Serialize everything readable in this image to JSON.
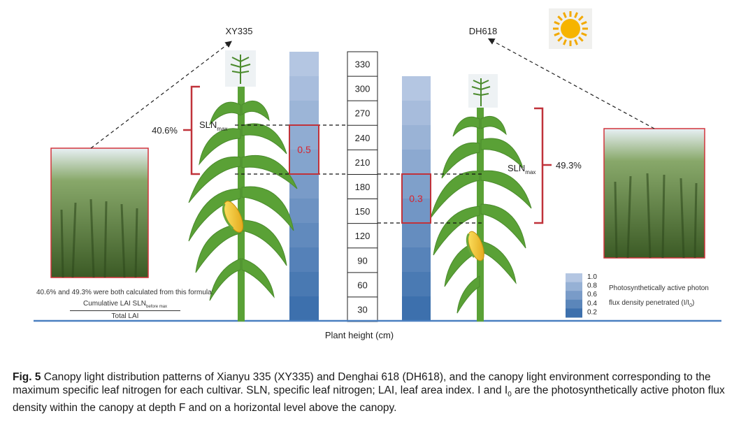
{
  "cultivars": {
    "left": {
      "name": "XY335",
      "percent": "40.6%",
      "sln_label": "SLN",
      "sln_sub": "max",
      "box_value": "0.5"
    },
    "right": {
      "name": "DH618",
      "percent": "49.3%",
      "sln_label": "SLN",
      "sln_sub": "max",
      "box_value": "0.3"
    }
  },
  "height_scale": {
    "ticks": [
      "330",
      "300",
      "270",
      "240",
      "210",
      "180",
      "150",
      "120",
      "90",
      "60",
      "30"
    ],
    "xlabel": "Plant height (cm)"
  },
  "formula": {
    "note": "40.6% and 49.3% were both calculated from this formula:",
    "numerator_main": "Cumulative LAI  SLN",
    "numerator_sub": "before max",
    "denominator": "Total LAI"
  },
  "legend": {
    "values": [
      "1.0",
      "0.8",
      "0.6",
      "0.4",
      "0.2"
    ],
    "line1": "Photosynthetically active photon",
    "line2_main": "flux density penetrated (I/I",
    "line2_sub": "0",
    "line2_end": ")"
  },
  "caption": {
    "label": "Fig. 5",
    "text1": "  Canopy light distribution patterns of Xianyu 335 (XY335) and Denghai 618 (DH618), and the canopy light environment corresponding to the maximum specific leaf nitrogen for each cultivar.  SLN, specific leaf nitrogen; LAI, leaf area index.  I and I",
    "sub": "0",
    "text2": " are the photosynthetically active photon flux density within the canopy at depth F and on a horizontal level above the canopy."
  },
  "colors": {
    "accent_red": "#c0323a",
    "ground_blue": "#4a7fc0",
    "leaf_green": "#5aa136",
    "column_light": "#b4c6e2",
    "column_dark": "#3d70ad"
  },
  "icons": [
    "sun-icon",
    "tassel-icon",
    "corn-ear-icon",
    "canopy-photo"
  ]
}
